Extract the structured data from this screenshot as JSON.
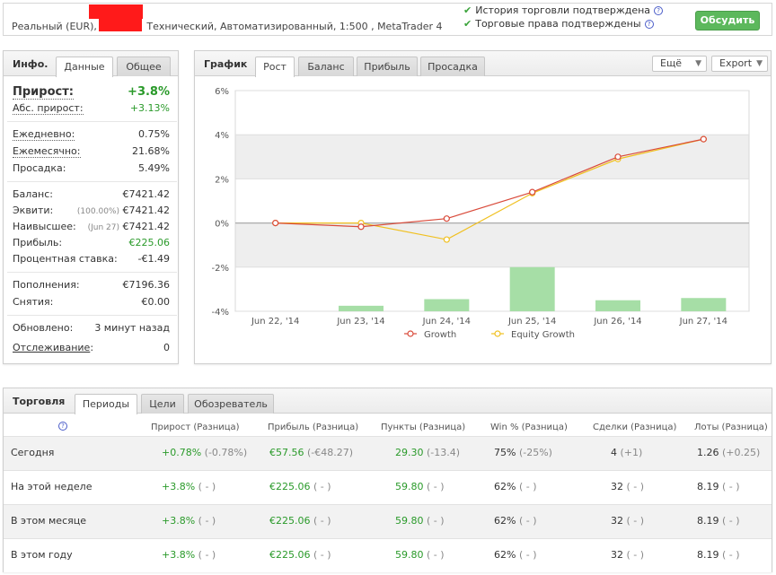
{
  "topbar": {
    "account_prefix": "Реальный (EUR),",
    "account_suffix": "Технический, Автоматизированный, 1:500 , MetaTrader 4",
    "verified_history": "История торговли подтверждена",
    "verified_rights": "Торговые права подтверждены",
    "discuss_label": "Обсудить",
    "check_color": "#3aa33a"
  },
  "info": {
    "title": "Инфо.",
    "tabs": [
      "Данные",
      "Общее"
    ],
    "growth_label": "Прирост:",
    "growth_value": "+3.8%",
    "abs_label": "Абс. прирост:",
    "abs_value": "+3.13%",
    "daily_label": "Ежедневно:",
    "daily_value": "0.75%",
    "monthly_label": "Ежемесячно:",
    "monthly_value": "21.68%",
    "drawdown_label": "Просадка:",
    "drawdown_value": "5.49%",
    "balance_label": "Баланс:",
    "balance_value": "€7421.42",
    "equity_label": "Эквити:",
    "equity_pct": "(100.00%)",
    "equity_value": "€7421.42",
    "highest_label": "Наивысшее:",
    "highest_date": "(Jun 27)",
    "highest_value": "€7421.42",
    "profit_label": "Прибыль:",
    "profit_value": "€225.06",
    "interest_label": "Процентная ставка:",
    "interest_value": "-€1.49",
    "deposits_label": "Пополнения:",
    "deposits_value": "€7196.36",
    "withdrawals_label": "Снятия:",
    "withdrawals_value": "€0.00",
    "updated_label": "Обновлено:",
    "updated_value": "3 минут назад",
    "tracking_label": "Отслеживание",
    "tracking_colon": ":",
    "tracking_value": "0"
  },
  "chart_panel": {
    "title": "График",
    "tabs": [
      "Рост",
      "Баланс",
      "Прибыль",
      "Просадка"
    ],
    "more_label": "Ещё",
    "export_label": "Export"
  },
  "chart_data": {
    "type": "line",
    "categories": [
      "Jun 22, '14",
      "Jun 23, '14",
      "Jun 24, '14",
      "Jun 25, '14",
      "Jun 26, '14",
      "Jun 27, '14"
    ],
    "series": [
      {
        "name": "Growth",
        "values": [
          0,
          -0.17,
          0.2,
          1.4,
          3.0,
          3.8
        ],
        "color": "#d94a3a"
      },
      {
        "name": "Equity Growth",
        "values": [
          0,
          0,
          -0.75,
          1.35,
          2.9,
          3.8
        ],
        "color": "#f0c020"
      }
    ],
    "bars": {
      "values": [
        0.25,
        0.55,
        2.0,
        0.5,
        0.6
      ],
      "color": "#a6dea6",
      "categories": [
        "Jun 23, '14",
        "Jun 24, '14",
        "Jun 25, '14",
        "Jun 26, '14",
        "Jun 27, '14"
      ]
    },
    "yticks": [
      "6%",
      "4%",
      "2%",
      "0%",
      "-2%",
      "-4%"
    ],
    "ylim": [
      -4,
      6
    ],
    "grid": true,
    "legend": "bottom"
  },
  "trading": {
    "title": "Торговля",
    "tabs": [
      "Периоды",
      "Цели",
      "Обозреватель"
    ],
    "headers": [
      "Прирост (Разница)",
      "Прибыль (Разница)",
      "Пункты (Разница)",
      "Win % (Разница)",
      "Сделки (Разница)",
      "Лоты (Разница)"
    ],
    "rows": [
      {
        "period": "Сегодня",
        "growth": "+0.78%",
        "growth_diff": "(-0.78%)",
        "profit": "€57.56",
        "profit_diff": "(-€48.27)",
        "pips": "29.30",
        "pips_diff": "(-13.4)",
        "win": "75%",
        "win_diff": "(-25%)",
        "trades": "4",
        "trades_diff": "(+1)",
        "lots": "1.26",
        "lots_diff": "(+0.25)"
      },
      {
        "period": "На этой неделе",
        "growth": "+3.8%",
        "growth_diff": "( - )",
        "profit": "€225.06",
        "profit_diff": "( - )",
        "pips": "59.80",
        "pips_diff": "( - )",
        "win": "62%",
        "win_diff": "( - )",
        "trades": "32",
        "trades_diff": "( - )",
        "lots": "8.19",
        "lots_diff": "( - )"
      },
      {
        "period": "В этом месяце",
        "growth": "+3.8%",
        "growth_diff": "( - )",
        "profit": "€225.06",
        "profit_diff": "( - )",
        "pips": "59.80",
        "pips_diff": "( - )",
        "win": "62%",
        "win_diff": "( - )",
        "trades": "32",
        "trades_diff": "( - )",
        "lots": "8.19",
        "lots_diff": "( - )"
      },
      {
        "period": "В этом году",
        "growth": "+3.8%",
        "growth_diff": "( - )",
        "profit": "€225.06",
        "profit_diff": "( - )",
        "pips": "59.80",
        "pips_diff": "( - )",
        "win": "62%",
        "win_diff": "( - )",
        "trades": "32",
        "trades_diff": "( - )",
        "lots": "8.19",
        "lots_diff": "( - )"
      }
    ]
  }
}
